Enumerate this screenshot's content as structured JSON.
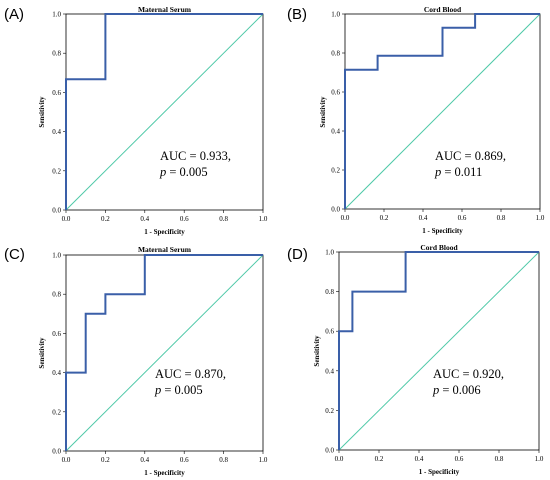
{
  "colors": {
    "roc": "#3a5fa8",
    "diagonal": "#4fc9a8",
    "frame": "#000000"
  },
  "chart_data": [
    {
      "type": "line",
      "panel_label": "(A)",
      "title": "Maternal Serum",
      "xlabel": "1 - Specificity",
      "ylabel": "Sensitivity",
      "xlim": [
        0,
        1
      ],
      "ylim": [
        0,
        1
      ],
      "x_ticks": [
        "0.0",
        "0.2",
        "0.4",
        "0.6",
        "0.8",
        "1.0"
      ],
      "y_ticks": [
        "0.0",
        "0.2",
        "0.4",
        "0.6",
        "0.8",
        "1.0"
      ],
      "auc_text": "AUC = 0.933,",
      "p_label": "p",
      "p_value": " = 0.005",
      "series": [
        {
          "x": [
            0,
            0,
            0.2,
            0.2,
            1
          ],
          "y": [
            0,
            0.667,
            0.667,
            1,
            1
          ]
        },
        {
          "x": [
            0,
            1
          ],
          "y": [
            0,
            1
          ]
        }
      ]
    },
    {
      "type": "line",
      "panel_label": "(B)",
      "title": "Cord Blood",
      "xlabel": "1 - Specificity",
      "ylabel": "Sensitivity",
      "xlim": [
        0,
        1
      ],
      "ylim": [
        0,
        1
      ],
      "x_ticks": [
        "0.0",
        "0.2",
        "0.4",
        "0.6",
        "0.8",
        "1.0"
      ],
      "y_ticks": [
        "0.0",
        "0.2",
        "0.4",
        "0.6",
        "0.8",
        "1.0"
      ],
      "auc_text": "AUC = 0.869,",
      "p_label": "p",
      "p_value": " = 0.011",
      "series": [
        {
          "x": [
            0,
            0,
            0.167,
            0.167,
            0.5,
            0.5,
            0.667,
            0.667,
            1
          ],
          "y": [
            0,
            0.714,
            0.714,
            0.786,
            0.786,
            0.929,
            0.929,
            1,
            1
          ]
        },
        {
          "x": [
            0,
            1
          ],
          "y": [
            0,
            1
          ]
        }
      ]
    },
    {
      "type": "line",
      "panel_label": "(C)",
      "title": "Maternal Serum",
      "xlabel": "1 - Specificity",
      "ylabel": "Sensitivity",
      "xlim": [
        0,
        1
      ],
      "ylim": [
        0,
        1
      ],
      "x_ticks": [
        "0.0",
        "0.2",
        "0.4",
        "0.6",
        "0.8",
        "1.0"
      ],
      "y_ticks": [
        "0.0",
        "0.2",
        "0.4",
        "0.6",
        "0.8",
        "1.0"
      ],
      "auc_text": "AUC = 0.870,",
      "p_label": "p",
      "p_value": " = 0.005",
      "series": [
        {
          "x": [
            0,
            0,
            0.1,
            0.1,
            0.2,
            0.2,
            0.4,
            0.4,
            1
          ],
          "y": [
            0,
            0.4,
            0.4,
            0.7,
            0.7,
            0.8,
            0.8,
            1,
            1
          ]
        },
        {
          "x": [
            0,
            1
          ],
          "y": [
            0,
            1
          ]
        }
      ]
    },
    {
      "type": "line",
      "panel_label": "(D)",
      "title": "Cord Blood",
      "xlabel": "1 - Specificity",
      "ylabel": "Sensitivity",
      "xlim": [
        0,
        1
      ],
      "ylim": [
        0,
        1
      ],
      "x_ticks": [
        "0.0",
        "0.2",
        "0.4",
        "0.6",
        "0.8",
        "1.0"
      ],
      "y_ticks": [
        "0.0",
        "0.2",
        "0.4",
        "0.6",
        "0.8",
        "1.0"
      ],
      "auc_text": "AUC = 0.920,",
      "p_label": "p",
      "p_value": " = 0.006",
      "series": [
        {
          "x": [
            0,
            0,
            0.067,
            0.067,
            0.333,
            0.333,
            1
          ],
          "y": [
            0,
            0.6,
            0.6,
            0.8,
            0.8,
            1,
            1
          ]
        },
        {
          "x": [
            0,
            1
          ],
          "y": [
            0,
            1
          ]
        }
      ]
    }
  ]
}
